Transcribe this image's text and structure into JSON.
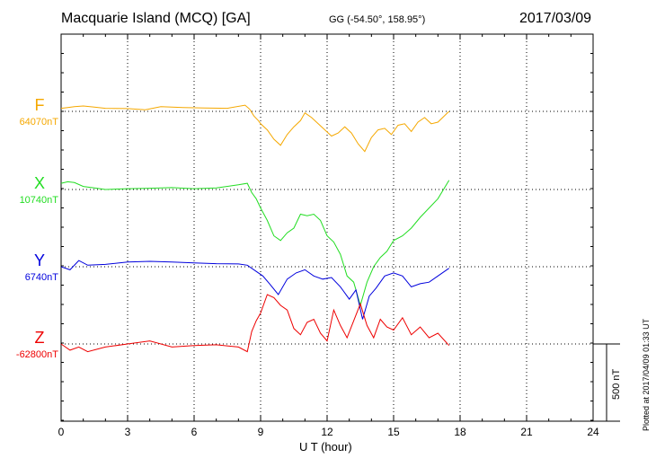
{
  "header": {
    "station": "Macquarie Island (MCQ)  [GA]",
    "coords": "GG (-54.50°, 158.95°)",
    "date": "2017/03/09"
  },
  "footer": {
    "plotted": "Plotted at 2017/04/09 01:33 UT",
    "scale_bar_label": "500 nT"
  },
  "chart_data": {
    "type": "line",
    "xlabel": "U T (hour)",
    "xlim": [
      0,
      24
    ],
    "xticks": [
      0,
      3,
      6,
      9,
      12,
      15,
      18,
      21,
      24
    ],
    "tick_labels": [
      "0",
      "3",
      "6",
      "9",
      "12",
      "15",
      "18",
      "21",
      "24"
    ],
    "units": "nT",
    "scale_bar_nT": 500,
    "series": [
      {
        "name": "F",
        "baseline": "64070nT",
        "color": "#f5a800",
        "x": [
          0,
          0.3,
          0.6,
          1.0,
          1.5,
          2.0,
          3.0,
          3.8,
          4.5,
          5.5,
          6.5,
          7.5,
          8.3,
          8.5,
          8.7,
          8.9,
          9.0,
          9.3,
          9.6,
          9.9,
          10.2,
          10.5,
          10.8,
          11.0,
          11.3,
          11.6,
          11.9,
          12.2,
          12.5,
          12.8,
          13.1,
          13.4,
          13.7,
          14.0,
          14.3,
          14.6,
          14.9,
          15.2,
          15.5,
          15.8,
          16.1,
          16.4,
          16.7,
          17.0,
          17.5
        ],
        "y": [
          20,
          25,
          30,
          35,
          28,
          20,
          18,
          10,
          30,
          25,
          22,
          20,
          40,
          15,
          -30,
          -60,
          -80,
          -120,
          -180,
          -220,
          -150,
          -100,
          -60,
          -10,
          -40,
          -80,
          -120,
          -160,
          -140,
          -100,
          -140,
          -210,
          -260,
          -170,
          -120,
          -110,
          -150,
          -90,
          -80,
          -130,
          -70,
          -40,
          -80,
          -70,
          0
        ]
      },
      {
        "name": "X",
        "baseline": "10740nT",
        "color": "#22dd22",
        "x": [
          0,
          0.3,
          0.6,
          1.0,
          1.5,
          2.0,
          3.0,
          4.0,
          5.0,
          6.0,
          7.0,
          8.0,
          8.4,
          8.6,
          8.8,
          9.0,
          9.3,
          9.6,
          9.9,
          10.2,
          10.5,
          10.8,
          11.1,
          11.4,
          11.7,
          12.0,
          12.3,
          12.6,
          12.9,
          13.2,
          13.5,
          13.8,
          14.1,
          14.4,
          14.7,
          15.0,
          15.4,
          15.8,
          16.2,
          16.6,
          17.0,
          17.5
        ],
        "y": [
          40,
          50,
          45,
          20,
          10,
          0,
          5,
          8,
          12,
          5,
          10,
          30,
          40,
          -20,
          -60,
          -120,
          -200,
          -300,
          -330,
          -280,
          -250,
          -160,
          -170,
          -160,
          -200,
          -300,
          -340,
          -420,
          -560,
          -600,
          -750,
          -600,
          -500,
          -440,
          -400,
          -330,
          -300,
          -250,
          -180,
          -120,
          -60,
          60
        ]
      },
      {
        "name": "Y",
        "baseline": "6740nT",
        "color": "#0000dd",
        "x": [
          0,
          0.4,
          0.8,
          1.2,
          2.0,
          3.0,
          4.0,
          5.0,
          6.0,
          7.0,
          8.0,
          8.4,
          8.8,
          9.1,
          9.4,
          9.8,
          10.2,
          10.6,
          11.0,
          11.4,
          11.8,
          12.2,
          12.6,
          13.0,
          13.3,
          13.6,
          13.9,
          14.2,
          14.6,
          15.0,
          15.4,
          15.8,
          16.2,
          16.6,
          17.0,
          17.5
        ],
        "y": [
          0,
          -20,
          40,
          10,
          15,
          30,
          35,
          30,
          25,
          20,
          18,
          10,
          -30,
          -60,
          -110,
          -180,
          -80,
          -40,
          -20,
          -60,
          -80,
          -70,
          -130,
          -210,
          -150,
          -340,
          -190,
          -140,
          -60,
          -40,
          -60,
          -130,
          -110,
          -100,
          -60,
          -10
        ]
      },
      {
        "name": "Z",
        "baseline": "-62800nT",
        "color": "#ee0000",
        "x": [
          0,
          0.4,
          0.8,
          1.2,
          2.0,
          3.0,
          4.0,
          5.0,
          6.0,
          7.0,
          8.0,
          8.4,
          8.6,
          8.8,
          9.0,
          9.3,
          9.6,
          9.9,
          10.2,
          10.5,
          10.8,
          11.1,
          11.4,
          11.7,
          12.0,
          12.3,
          12.6,
          12.9,
          13.2,
          13.5,
          13.8,
          14.1,
          14.4,
          14.7,
          15.0,
          15.4,
          15.8,
          16.2,
          16.6,
          17.0,
          17.5
        ],
        "y": [
          0,
          -40,
          -20,
          -50,
          -20,
          0,
          20,
          -20,
          -10,
          -5,
          -20,
          -50,
          80,
          150,
          200,
          320,
          300,
          250,
          220,
          100,
          60,
          140,
          160,
          70,
          20,
          220,
          120,
          40,
          150,
          260,
          120,
          40,
          160,
          110,
          90,
          170,
          60,
          110,
          40,
          70,
          -10
        ]
      }
    ]
  }
}
